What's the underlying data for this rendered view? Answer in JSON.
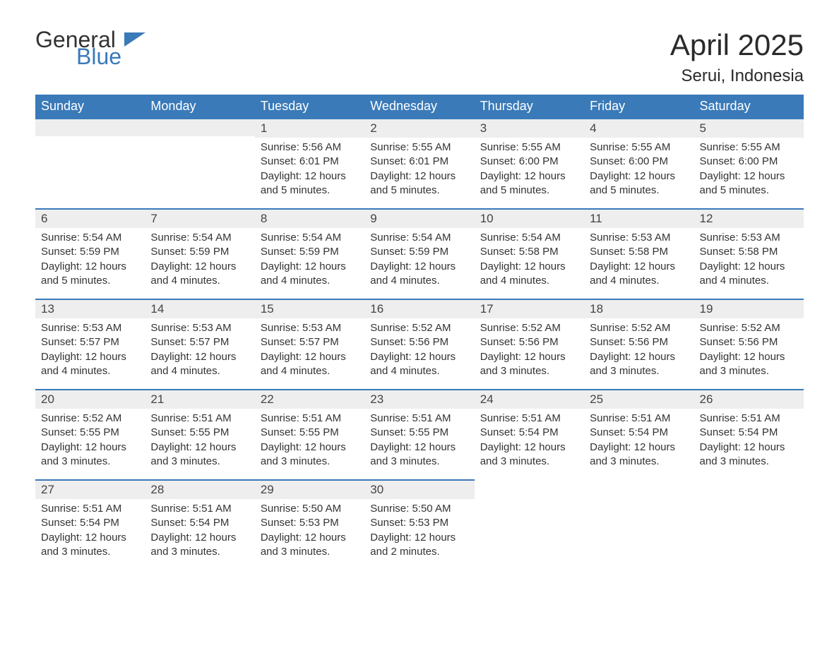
{
  "logo": {
    "line1": "General",
    "line2": "Blue"
  },
  "header": {
    "month_title": "April 2025",
    "location": "Serui, Indonesia"
  },
  "colors": {
    "header_bg": "#3a7ab8",
    "header_text": "#ffffff",
    "daynum_bg": "#eeeeee",
    "daynum_border": "#3a7ab8",
    "body_text": "#333333",
    "page_bg": "#ffffff"
  },
  "weekdays": [
    "Sunday",
    "Monday",
    "Tuesday",
    "Wednesday",
    "Thursday",
    "Friday",
    "Saturday"
  ],
  "labels": {
    "sunrise": "Sunrise:",
    "sunset": "Sunset:",
    "daylight": "Daylight:"
  },
  "weeks": [
    [
      null,
      null,
      {
        "num": "1",
        "sunrise": "5:56 AM",
        "sunset": "6:01 PM",
        "daylight": "12 hours and 5 minutes."
      },
      {
        "num": "2",
        "sunrise": "5:55 AM",
        "sunset": "6:01 PM",
        "daylight": "12 hours and 5 minutes."
      },
      {
        "num": "3",
        "sunrise": "5:55 AM",
        "sunset": "6:00 PM",
        "daylight": "12 hours and 5 minutes."
      },
      {
        "num": "4",
        "sunrise": "5:55 AM",
        "sunset": "6:00 PM",
        "daylight": "12 hours and 5 minutes."
      },
      {
        "num": "5",
        "sunrise": "5:55 AM",
        "sunset": "6:00 PM",
        "daylight": "12 hours and 5 minutes."
      }
    ],
    [
      {
        "num": "6",
        "sunrise": "5:54 AM",
        "sunset": "5:59 PM",
        "daylight": "12 hours and 5 minutes."
      },
      {
        "num": "7",
        "sunrise": "5:54 AM",
        "sunset": "5:59 PM",
        "daylight": "12 hours and 4 minutes."
      },
      {
        "num": "8",
        "sunrise": "5:54 AM",
        "sunset": "5:59 PM",
        "daylight": "12 hours and 4 minutes."
      },
      {
        "num": "9",
        "sunrise": "5:54 AM",
        "sunset": "5:59 PM",
        "daylight": "12 hours and 4 minutes."
      },
      {
        "num": "10",
        "sunrise": "5:54 AM",
        "sunset": "5:58 PM",
        "daylight": "12 hours and 4 minutes."
      },
      {
        "num": "11",
        "sunrise": "5:53 AM",
        "sunset": "5:58 PM",
        "daylight": "12 hours and 4 minutes."
      },
      {
        "num": "12",
        "sunrise": "5:53 AM",
        "sunset": "5:58 PM",
        "daylight": "12 hours and 4 minutes."
      }
    ],
    [
      {
        "num": "13",
        "sunrise": "5:53 AM",
        "sunset": "5:57 PM",
        "daylight": "12 hours and 4 minutes."
      },
      {
        "num": "14",
        "sunrise": "5:53 AM",
        "sunset": "5:57 PM",
        "daylight": "12 hours and 4 minutes."
      },
      {
        "num": "15",
        "sunrise": "5:53 AM",
        "sunset": "5:57 PM",
        "daylight": "12 hours and 4 minutes."
      },
      {
        "num": "16",
        "sunrise": "5:52 AM",
        "sunset": "5:56 PM",
        "daylight": "12 hours and 4 minutes."
      },
      {
        "num": "17",
        "sunrise": "5:52 AM",
        "sunset": "5:56 PM",
        "daylight": "12 hours and 3 minutes."
      },
      {
        "num": "18",
        "sunrise": "5:52 AM",
        "sunset": "5:56 PM",
        "daylight": "12 hours and 3 minutes."
      },
      {
        "num": "19",
        "sunrise": "5:52 AM",
        "sunset": "5:56 PM",
        "daylight": "12 hours and 3 minutes."
      }
    ],
    [
      {
        "num": "20",
        "sunrise": "5:52 AM",
        "sunset": "5:55 PM",
        "daylight": "12 hours and 3 minutes."
      },
      {
        "num": "21",
        "sunrise": "5:51 AM",
        "sunset": "5:55 PM",
        "daylight": "12 hours and 3 minutes."
      },
      {
        "num": "22",
        "sunrise": "5:51 AM",
        "sunset": "5:55 PM",
        "daylight": "12 hours and 3 minutes."
      },
      {
        "num": "23",
        "sunrise": "5:51 AM",
        "sunset": "5:55 PM",
        "daylight": "12 hours and 3 minutes."
      },
      {
        "num": "24",
        "sunrise": "5:51 AM",
        "sunset": "5:54 PM",
        "daylight": "12 hours and 3 minutes."
      },
      {
        "num": "25",
        "sunrise": "5:51 AM",
        "sunset": "5:54 PM",
        "daylight": "12 hours and 3 minutes."
      },
      {
        "num": "26",
        "sunrise": "5:51 AM",
        "sunset": "5:54 PM",
        "daylight": "12 hours and 3 minutes."
      }
    ],
    [
      {
        "num": "27",
        "sunrise": "5:51 AM",
        "sunset": "5:54 PM",
        "daylight": "12 hours and 3 minutes."
      },
      {
        "num": "28",
        "sunrise": "5:51 AM",
        "sunset": "5:54 PM",
        "daylight": "12 hours and 3 minutes."
      },
      {
        "num": "29",
        "sunrise": "5:50 AM",
        "sunset": "5:53 PM",
        "daylight": "12 hours and 3 minutes."
      },
      {
        "num": "30",
        "sunrise": "5:50 AM",
        "sunset": "5:53 PM",
        "daylight": "12 hours and 2 minutes."
      },
      null,
      null,
      null
    ]
  ]
}
